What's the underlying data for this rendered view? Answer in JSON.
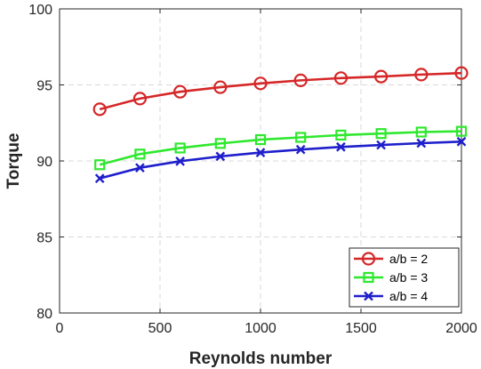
{
  "chart_data": {
    "type": "line",
    "xlabel": "Reynolds number",
    "ylabel": "Torque",
    "xlim": [
      0,
      2000
    ],
    "ylim": [
      80,
      100
    ],
    "xticks": [
      0,
      500,
      1000,
      1500,
      2000
    ],
    "yticks": [
      80,
      85,
      90,
      95,
      100
    ],
    "grid": true,
    "legend_position": "bottom-right",
    "x": [
      200,
      400,
      600,
      800,
      1000,
      1200,
      1400,
      1600,
      1800,
      2000
    ],
    "series": [
      {
        "name": "a/b = 2",
        "color": "#d62728",
        "marker": "circle",
        "values": [
          93.4,
          94.1,
          94.55,
          94.85,
          95.1,
          95.3,
          95.45,
          95.55,
          95.68,
          95.78
        ]
      },
      {
        "name": "a/b = 3",
        "color": "#2ee82e",
        "marker": "square",
        "values": [
          89.75,
          90.45,
          90.85,
          91.15,
          91.4,
          91.55,
          91.7,
          91.8,
          91.9,
          91.95
        ]
      },
      {
        "name": "a/b = 4",
        "color": "#1f1fcc",
        "marker": "x",
        "values": [
          88.85,
          89.55,
          89.98,
          90.3,
          90.55,
          90.75,
          90.92,
          91.05,
          91.17,
          91.27
        ]
      }
    ]
  }
}
